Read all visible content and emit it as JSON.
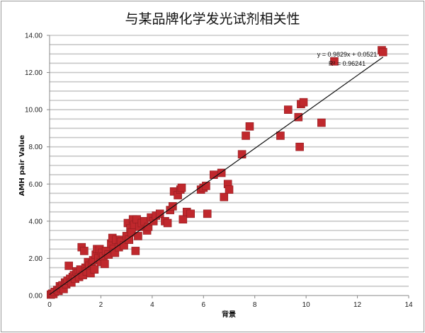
{
  "chart_data": {
    "type": "scatter",
    "title": "与某品牌化学发光试剂相关性",
    "xlabel": "背景",
    "ylabel": "AMH pair Value",
    "xlim": [
      0,
      14
    ],
    "ylim": [
      0,
      14
    ],
    "x_ticks": [
      "0",
      "2",
      "4",
      "6",
      "8",
      "10",
      "12",
      "14"
    ],
    "y_ticks": [
      "0.00",
      "2.00",
      "4.00",
      "6.00",
      "8.00",
      "10.00",
      "12.00",
      "14.00"
    ],
    "grid": "horizontal, every 0.5",
    "legend": "none",
    "marker_color": "#c0282d",
    "trendline": {
      "equation": "y = 0.9829x + 0.0521",
      "r_squared": "R² = 0.96241",
      "slope": 0.9829,
      "intercept": 0.0521
    },
    "points": [
      [
        0.05,
        0.05
      ],
      [
        0.1,
        0.1
      ],
      [
        0.15,
        0.08
      ],
      [
        0.2,
        0.2
      ],
      [
        0.3,
        0.3
      ],
      [
        0.35,
        0.25
      ],
      [
        0.4,
        0.5
      ],
      [
        0.45,
        0.4
      ],
      [
        0.5,
        0.55
      ],
      [
        0.55,
        0.35
      ],
      [
        0.6,
        0.7
      ],
      [
        0.65,
        0.6
      ],
      [
        0.7,
        0.8
      ],
      [
        0.75,
        1.6
      ],
      [
        0.8,
        0.9
      ],
      [
        0.85,
        0.7
      ],
      [
        0.9,
        1.0
      ],
      [
        0.95,
        1.1
      ],
      [
        1.0,
        0.9
      ],
      [
        1.05,
        1.3
      ],
      [
        1.1,
        1.2
      ],
      [
        1.15,
        1.0
      ],
      [
        1.2,
        1.4
      ],
      [
        1.25,
        2.6
      ],
      [
        1.3,
        1.1
      ],
      [
        1.35,
        2.4
      ],
      [
        1.4,
        1.5
      ],
      [
        1.45,
        1.3
      ],
      [
        1.5,
        1.8
      ],
      [
        1.55,
        1.6
      ],
      [
        1.6,
        1.2
      ],
      [
        1.65,
        1.7
      ],
      [
        1.7,
        1.9
      ],
      [
        1.75,
        1.4
      ],
      [
        1.8,
        2.2
      ],
      [
        1.85,
        2.5
      ],
      [
        1.9,
        2.0
      ],
      [
        1.95,
        2.5
      ],
      [
        2.0,
        1.8
      ],
      [
        2.05,
        2.3
      ],
      [
        2.1,
        2.1
      ],
      [
        2.15,
        1.7
      ],
      [
        2.2,
        2.4
      ],
      [
        2.3,
        2.2
      ],
      [
        2.4,
        2.8
      ],
      [
        2.45,
        3.1
      ],
      [
        2.5,
        2.5
      ],
      [
        2.55,
        2.3
      ],
      [
        2.6,
        3.0
      ],
      [
        2.7,
        2.6
      ],
      [
        2.75,
        3.0
      ],
      [
        2.8,
        2.9
      ],
      [
        2.9,
        2.7
      ],
      [
        3.0,
        3.2
      ],
      [
        3.05,
        3.9
      ],
      [
        3.1,
        3.0
      ],
      [
        3.15,
        3.6
      ],
      [
        3.2,
        3.4
      ],
      [
        3.25,
        4.1
      ],
      [
        3.3,
        3.8
      ],
      [
        3.35,
        2.4
      ],
      [
        3.4,
        4.1
      ],
      [
        3.45,
        3.2
      ],
      [
        3.5,
        3.7
      ],
      [
        3.6,
        3.9
      ],
      [
        3.7,
        4.0
      ],
      [
        3.8,
        3.5
      ],
      [
        3.85,
        3.7
      ],
      [
        3.95,
        4.2
      ],
      [
        4.05,
        4.0
      ],
      [
        4.15,
        4.3
      ],
      [
        4.3,
        4.4
      ],
      [
        4.5,
        4.0
      ],
      [
        4.6,
        3.9
      ],
      [
        4.7,
        4.6
      ],
      [
        4.8,
        4.8
      ],
      [
        4.85,
        5.6
      ],
      [
        5.0,
        5.4
      ],
      [
        5.1,
        5.7
      ],
      [
        5.15,
        5.8
      ],
      [
        5.2,
        4.1
      ],
      [
        5.35,
        4.5
      ],
      [
        5.5,
        4.4
      ],
      [
        5.9,
        5.7
      ],
      [
        6.0,
        5.8
      ],
      [
        6.1,
        5.9
      ],
      [
        6.15,
        4.4
      ],
      [
        6.4,
        6.5
      ],
      [
        6.7,
        6.6
      ],
      [
        6.8,
        5.3
      ],
      [
        6.95,
        6.0
      ],
      [
        7.0,
        5.7
      ],
      [
        7.5,
        7.6
      ],
      [
        7.65,
        8.6
      ],
      [
        7.8,
        9.1
      ],
      [
        9.0,
        8.6
      ],
      [
        9.3,
        10.0
      ],
      [
        9.7,
        9.6
      ],
      [
        9.75,
        8.0
      ],
      [
        9.8,
        10.3
      ],
      [
        9.9,
        10.4
      ],
      [
        10.6,
        9.3
      ],
      [
        11.1,
        12.6
      ],
      [
        12.95,
        13.2
      ],
      [
        13.0,
        13.1
      ]
    ]
  }
}
